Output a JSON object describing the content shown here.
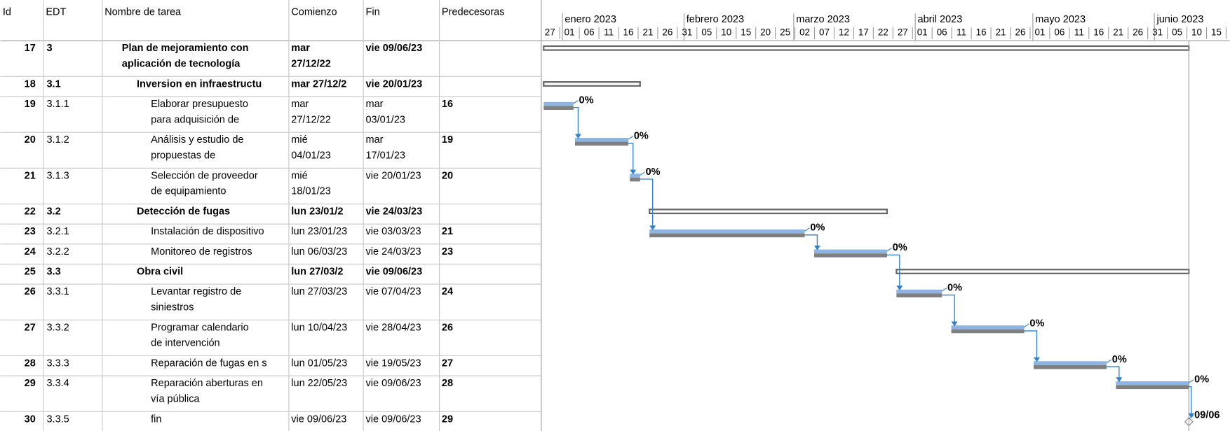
{
  "header": [
    "Id",
    "EDT",
    "Nombre de tarea",
    "Comienzo",
    "Fin",
    "Predecesoras"
  ],
  "timeline": {
    "months": [
      "enero 2023",
      "febrero 2023",
      "marzo 2023",
      "abril 2023",
      "mayo 2023",
      "junio 2023"
    ],
    "days": [
      "27",
      "01",
      "06",
      "11",
      "16",
      "21",
      "26",
      "31",
      "05",
      "10",
      "15",
      "20",
      "25",
      "02",
      "07",
      "12",
      "17",
      "22",
      "27",
      "01",
      "06",
      "11",
      "16",
      "21",
      "26",
      "01",
      "06",
      "11",
      "16",
      "21",
      "26",
      "31",
      "05",
      "10",
      "15"
    ]
  },
  "rows": [
    {
      "id": "17",
      "edt": "3",
      "name": [
        "Plan de mejoramiento con",
        "aplicación de tecnología"
      ],
      "start": [
        "mar",
        "27/12/22"
      ],
      "end": [
        "vie 09/06/23"
      ],
      "pred": [],
      "summary": true
    },
    {
      "id": "18",
      "edt": "3.1",
      "name": [
        "Inversion en infraestructu"
      ],
      "start": [
        "mar 27/12/2"
      ],
      "end": [
        "vie 20/01/23"
      ],
      "pred": [],
      "summary": true
    },
    {
      "id": "19",
      "edt": "3.1.1",
      "name": [
        "Elaborar presupuesto",
        "para adquisición de"
      ],
      "start": [
        "mar",
        "27/12/22"
      ],
      "end": [
        "mar",
        "03/01/23"
      ],
      "pred": [
        "16"
      ],
      "pct": "0%"
    },
    {
      "id": "20",
      "edt": "3.1.2",
      "name": [
        "Análisis y estudio de",
        "propuestas de"
      ],
      "start": [
        "mié",
        "04/01/23"
      ],
      "end": [
        "mar",
        "17/01/23"
      ],
      "pred": [
        "19"
      ],
      "pct": "0%"
    },
    {
      "id": "21",
      "edt": "3.1.3",
      "name": [
        "Selección de proveedor",
        "de equipamiento"
      ],
      "start": [
        "mié",
        "18/01/23"
      ],
      "end": [
        "vie 20/01/23"
      ],
      "pred": [
        "20"
      ],
      "pct": "0%"
    },
    {
      "id": "22",
      "edt": "3.2",
      "name": [
        "Detección de fugas"
      ],
      "start": [
        "lun 23/01/2"
      ],
      "end": [
        "vie 24/03/23"
      ],
      "pred": [],
      "summary": true
    },
    {
      "id": "23",
      "edt": "3.2.1",
      "name": [
        "Instalación de dispositivo"
      ],
      "start": [
        "lun 23/01/23"
      ],
      "end": [
        "vie 03/03/23"
      ],
      "pred": [
        "21"
      ],
      "pct": "0%"
    },
    {
      "id": "24",
      "edt": "3.2.2",
      "name": [
        "Monitoreo de registros"
      ],
      "start": [
        "lun 06/03/23"
      ],
      "end": [
        "vie 24/03/23"
      ],
      "pred": [
        "23"
      ],
      "pct": "0%"
    },
    {
      "id": "25",
      "edt": "3.3",
      "name": [
        "Obra civil"
      ],
      "start": [
        "lun 27/03/2"
      ],
      "end": [
        "vie 09/06/23"
      ],
      "pred": [],
      "summary": true
    },
    {
      "id": "26",
      "edt": "3.3.1",
      "name": [
        "Levantar registro de",
        "siniestros"
      ],
      "start": [
        "lun 27/03/23"
      ],
      "end": [
        "vie 07/04/23"
      ],
      "pred": [
        "24"
      ],
      "pct": "0%"
    },
    {
      "id": "27",
      "edt": "3.3.2",
      "name": [
        "Programar calendario",
        "de intervención"
      ],
      "start": [
        "lun 10/04/23"
      ],
      "end": [
        "vie 28/04/23"
      ],
      "pred": [
        "26"
      ],
      "pct": "0%"
    },
    {
      "id": "28",
      "edt": "3.3.3",
      "name": [
        "Reparación de fugas en s"
      ],
      "start": [
        "lun 01/05/23"
      ],
      "end": [
        "vie 19/05/23"
      ],
      "pred": [
        "27"
      ],
      "pct": "0%"
    },
    {
      "id": "29",
      "edt": "3.3.4",
      "name": [
        "Reparación aberturas en",
        "vía pública"
      ],
      "start": [
        "lun 22/05/23"
      ],
      "end": [
        "vie 09/06/23"
      ],
      "pred": [
        "28"
      ],
      "pct": "0%"
    },
    {
      "id": "30",
      "edt": "3.3.5",
      "name": [
        "fin"
      ],
      "start": [
        "vie 09/06/23"
      ],
      "end": [
        "vie 09/06/23"
      ],
      "pred": [
        "29"
      ],
      "pct": "09/06"
    }
  ]
}
